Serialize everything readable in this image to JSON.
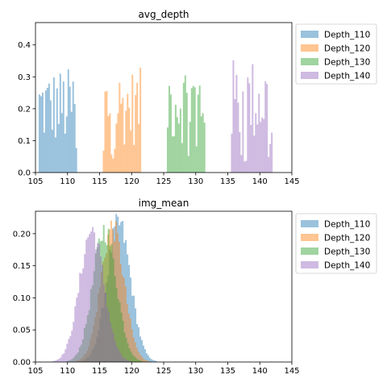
{
  "chart_data": [
    {
      "type": "histogram",
      "title": "avg_depth",
      "xlabel": "",
      "ylabel": "",
      "xlim": [
        105,
        145
      ],
      "ylim": [
        0,
        0.47
      ],
      "xticks": [
        105,
        110,
        115,
        120,
        125,
        130,
        135,
        140,
        145
      ],
      "yticks": [
        0.0,
        0.1,
        0.2,
        0.3,
        0.4
      ],
      "bin_width": 0.25,
      "legend_position": "outside-right-top",
      "series": [
        {
          "name": "Depth_110",
          "color": "#1f77b4",
          "range": [
            105.5,
            111.5
          ],
          "peak": 0.33
        },
        {
          "name": "Depth_120",
          "color": "#ff7f0e",
          "range": [
            115.5,
            121.5
          ],
          "peak": 0.33
        },
        {
          "name": "Depth_130",
          "color": "#2ca02c",
          "range": [
            125.5,
            131.5
          ],
          "peak": 0.36
        },
        {
          "name": "Depth_140",
          "color": "#9467bd",
          "range": [
            135.5,
            141.8
          ],
          "peak": 0.36
        }
      ]
    },
    {
      "type": "histogram",
      "title": "img_mean",
      "xlabel": "",
      "ylabel": "",
      "xlim": [
        105,
        145
      ],
      "ylim": [
        0,
        0.235
      ],
      "xticks": [
        105,
        110,
        115,
        120,
        125,
        130,
        135,
        140,
        145
      ],
      "yticks": [
        0.0,
        0.05,
        0.1,
        0.15,
        0.2
      ],
      "bin_width": 0.25,
      "legend_position": "outside-right-top",
      "series": [
        {
          "name": "Depth_110",
          "color": "#1f77b4",
          "mean": 118.0,
          "sd": 1.85,
          "peak": 0.215
        },
        {
          "name": "Depth_120",
          "color": "#ff7f0e",
          "mean": 117.0,
          "sd": 1.8,
          "peak": 0.21
        },
        {
          "name": "Depth_130",
          "color": "#2ca02c",
          "mean": 115.8,
          "sd": 1.85,
          "peak": 0.205
        },
        {
          "name": "Depth_140",
          "color": "#9467bd",
          "mean": 113.8,
          "sd": 1.9,
          "peak": 0.205
        }
      ]
    }
  ]
}
